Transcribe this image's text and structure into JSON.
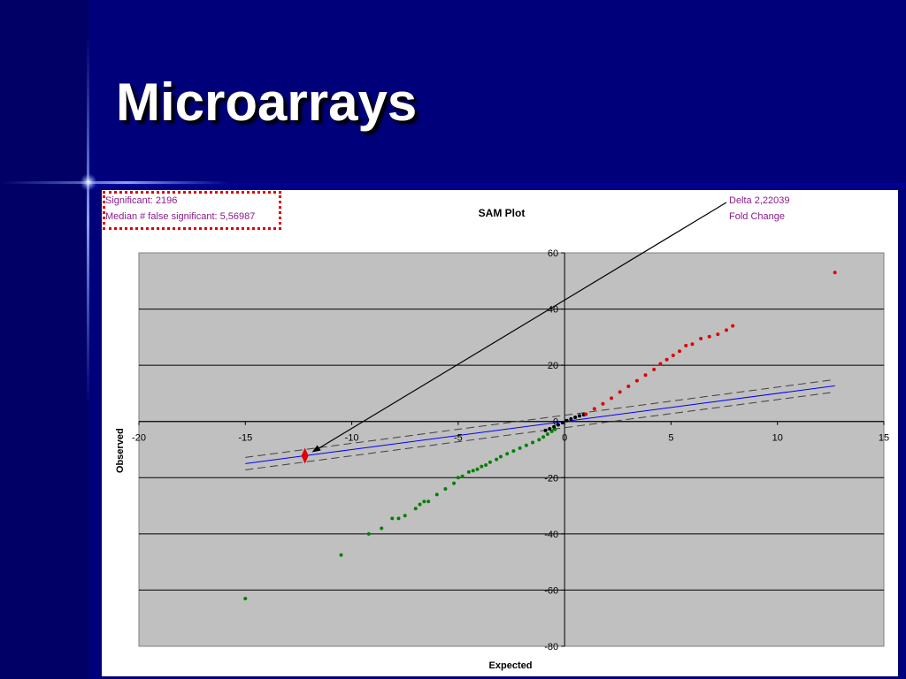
{
  "slide": {
    "title": "Microarrays",
    "background_color": "#00007a",
    "glow_color": "#6f8dff"
  },
  "stats": {
    "significant": "Significant: 2196",
    "median_false": "Median # false significant: 5,56987"
  },
  "legend_info": {
    "delta": "Delta 2,22039",
    "fold_change": "Fold Change"
  },
  "chart_data": {
    "type": "scatter",
    "title": "SAM Plot",
    "xlabel": "Expected",
    "ylabel": "Observed",
    "xlim": [
      -20,
      15
    ],
    "ylim": [
      -80,
      60
    ],
    "xticks": [
      -20,
      -15,
      -10,
      -5,
      0,
      5,
      10,
      15
    ],
    "yticks": [
      60,
      40,
      20,
      0,
      -20,
      -40,
      -60,
      -80
    ],
    "grid": "horizontal",
    "plot_background": "#c0c0c0",
    "series": [
      {
        "color": "#008000",
        "points": [
          [
            -15,
            -63
          ],
          [
            -10.5,
            -47.5
          ],
          [
            -9.2,
            -40
          ],
          [
            -8.6,
            -38
          ],
          [
            -8.1,
            -34.5
          ],
          [
            -7.8,
            -34.5
          ],
          [
            -7.5,
            -33.5
          ],
          [
            -7,
            -31
          ],
          [
            -6.8,
            -29.5
          ],
          [
            -6.6,
            -28.5
          ],
          [
            -6.4,
            -28.5
          ],
          [
            -6,
            -26
          ],
          [
            -5.6,
            -24
          ],
          [
            -5.2,
            -22
          ],
          [
            -5,
            -20
          ],
          [
            -4.8,
            -19.5
          ],
          [
            -4.5,
            -18
          ],
          [
            -4.3,
            -17.5
          ],
          [
            -4.1,
            -17
          ],
          [
            -3.9,
            -16
          ],
          [
            -3.7,
            -15.5
          ],
          [
            -3.5,
            -14.5
          ],
          [
            -3.2,
            -13.5
          ],
          [
            -3,
            -12.5
          ],
          [
            -2.7,
            -11.5
          ],
          [
            -2.4,
            -10.5
          ],
          [
            -2.1,
            -9.5
          ],
          [
            -1.8,
            -8.5
          ],
          [
            -1.5,
            -7.5
          ],
          [
            -1.2,
            -6.5
          ],
          [
            -1,
            -5.5
          ],
          [
            -0.8,
            -4.5
          ],
          [
            -0.6,
            -3.5
          ],
          [
            -0.45,
            -2.8
          ]
        ]
      },
      {
        "color": "#000000",
        "points": [
          [
            -0.9,
            -3.2
          ],
          [
            -0.7,
            -2.6
          ],
          [
            -0.5,
            -1.9
          ],
          [
            -0.3,
            -1.2
          ],
          [
            -0.1,
            -0.4
          ],
          [
            0.1,
            0.3
          ],
          [
            0.3,
            0.9
          ],
          [
            0.5,
            1.5
          ],
          [
            0.7,
            2
          ],
          [
            0.9,
            2.4
          ]
        ]
      },
      {
        "color": "#e00000",
        "points": [
          [
            1,
            2.6
          ],
          [
            1.4,
            4.5
          ],
          [
            1.8,
            6.3
          ],
          [
            2.2,
            8.3
          ],
          [
            2.6,
            10.5
          ],
          [
            3,
            12.5
          ],
          [
            3.4,
            14.5
          ],
          [
            3.8,
            16.5
          ],
          [
            4.2,
            18.5
          ],
          [
            4.5,
            20.5
          ],
          [
            4.8,
            22
          ],
          [
            5.1,
            23.5
          ],
          [
            5.4,
            25
          ],
          [
            5.7,
            27
          ],
          [
            6,
            27.5
          ],
          [
            6.4,
            29.5
          ],
          [
            6.8,
            30.2
          ],
          [
            7.2,
            31
          ],
          [
            7.6,
            32.5
          ],
          [
            7.9,
            34
          ],
          [
            12.7,
            53
          ]
        ]
      }
    ],
    "reference_line": {
      "color": "#0000ff",
      "from": [
        -15,
        -15
      ],
      "to": [
        12.7,
        12.7
      ]
    },
    "threshold_lines": {
      "color": "#404040",
      "style": "dashed",
      "upper": {
        "from": [
          -15,
          -12.78
        ],
        "to": [
          12.7,
          14.92
        ]
      },
      "lower": {
        "from": [
          -15,
          -17.22
        ],
        "to": [
          12.7,
          10.48
        ]
      }
    },
    "delta_marker": {
      "color": "#e00000",
      "x": -12.2,
      "y": -12.2
    }
  }
}
